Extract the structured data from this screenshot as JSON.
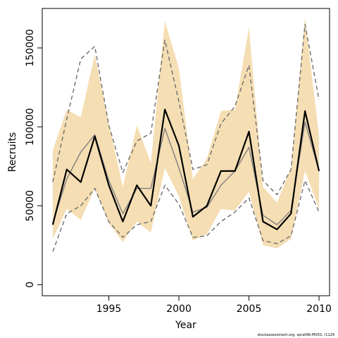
{
  "chart_data": {
    "type": "line",
    "xlabel": "Year",
    "ylabel": "Recruits",
    "x": [
      1991,
      1992,
      1993,
      1994,
      1995,
      1996,
      1997,
      1998,
      1999,
      2000,
      2001,
      2002,
      2003,
      2004,
      2005,
      2006,
      2007,
      2008,
      2009,
      2010
    ],
    "xlim": [
      1990.25,
      2010.75
    ],
    "ylim": [
      -7000,
      175000
    ],
    "x_ticks": [
      1995,
      2000,
      2005,
      2010
    ],
    "y_ticks": [
      0,
      50000,
      100000,
      150000
    ],
    "grid": false,
    "legend": "none",
    "series": [
      {
        "role": "estimate",
        "values": [
          38000,
          73000,
          65000,
          94000,
          63000,
          40000,
          63000,
          50000,
          111000,
          88000,
          43000,
          50000,
          72000,
          72000,
          97000,
          40000,
          35000,
          45000,
          110000,
          72000
        ]
      },
      {
        "role": "comparison-run",
        "values": [
          39000,
          67000,
          84000,
          95000,
          66000,
          45000,
          61000,
          61000,
          99000,
          74000,
          46000,
          49000,
          63000,
          72000,
          87000,
          44000,
          38000,
          47000,
          103000,
          72000
        ]
      },
      {
        "role": "comparison-upper",
        "values": [
          65000,
          105000,
          143000,
          151000,
          101000,
          71000,
          91000,
          96000,
          155000,
          116000,
          73000,
          76000,
          102000,
          113000,
          139000,
          66000,
          57000,
          73000,
          165000,
          117000
        ]
      },
      {
        "role": "comparison-lower",
        "values": [
          21000,
          45000,
          50000,
          61000,
          40000,
          30000,
          38000,
          40000,
          63000,
          51000,
          30000,
          31000,
          40000,
          46000,
          55000,
          28000,
          26000,
          31000,
          66000,
          46000
        ]
      },
      {
        "role": "confidence-upper",
        "values": [
          85000,
          111000,
          106000,
          146000,
          102000,
          62000,
          101000,
          77000,
          167000,
          137000,
          67000,
          80000,
          110000,
          111000,
          163000,
          62000,
          52000,
          74000,
          169000,
          94000
        ]
      },
      {
        "role": "confidence-lower",
        "values": [
          29000,
          48000,
          41000,
          61000,
          39000,
          27000,
          40000,
          33000,
          74000,
          56000,
          28000,
          32000,
          48000,
          47000,
          59000,
          25000,
          23000,
          29000,
          72000,
          48000
        ]
      }
    ]
  },
  "colors": {
    "band": "#f5deb3",
    "estimate": "#000000",
    "comparison": "#808080",
    "comparison_dashed": "#6e6e6e"
  },
  "credit": "stockassessment.org, spratNS-MV03, r1129"
}
